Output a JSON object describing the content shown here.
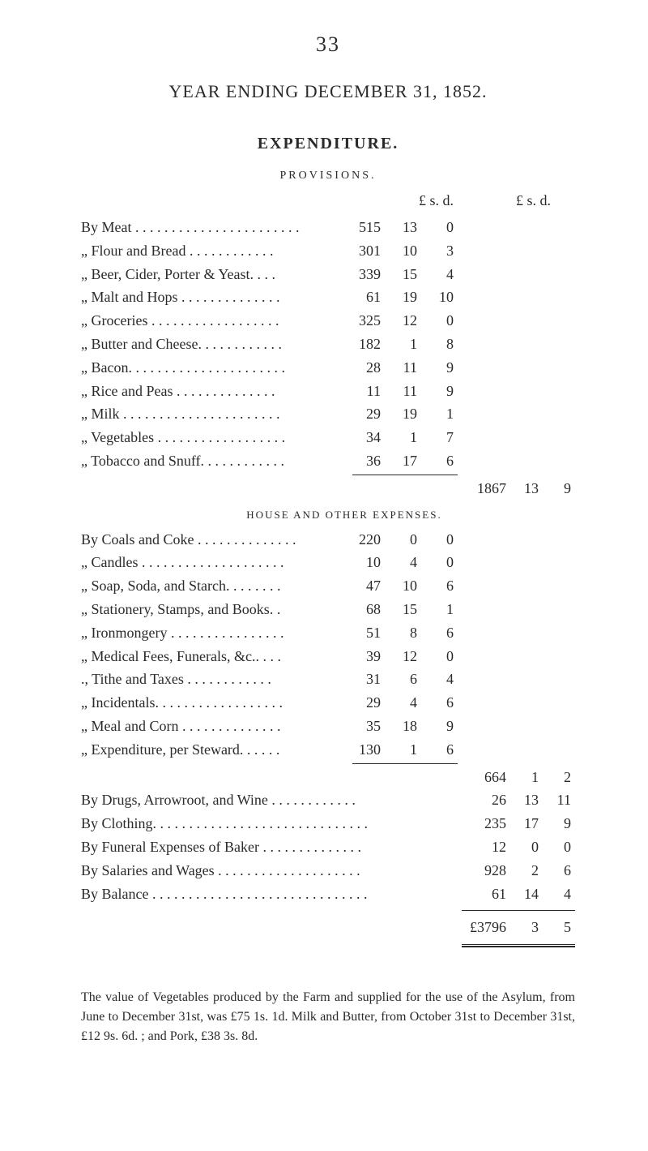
{
  "page_number": "33",
  "title": "YEAR ENDING DECEMBER 31, 1852.",
  "main_header": "EXPENDITURE.",
  "provisions": {
    "header": "PROVISIONS.",
    "col_headers": {
      "lsd1": "£  s.  d.",
      "lsd2": "£    s.  d."
    },
    "items": [
      {
        "label": "By Meat . . . . . . . . . . . . . . . . . . . . . . .",
        "pounds": "515",
        "shillings": "13",
        "pence": "0"
      },
      {
        "label": "„  Flour and Bread  . . . . . . . . . . . .",
        "pounds": "301",
        "shillings": "10",
        "pence": "3"
      },
      {
        "label": "„  Beer, Cider, Porter & Yeast. . . .",
        "pounds": "339",
        "shillings": "15",
        "pence": "4"
      },
      {
        "label": "„  Malt and Hops . . . . . . . . . . . . . .",
        "pounds": "61",
        "shillings": "19",
        "pence": "10"
      },
      {
        "label": "„  Groceries  . . . . . . . . . . . . . . . . . .",
        "pounds": "325",
        "shillings": "12",
        "pence": "0"
      },
      {
        "label": "„  Butter and Cheese. . . . . . . . . . . .",
        "pounds": "182",
        "shillings": "1",
        "pence": "8"
      },
      {
        "label": "„  Bacon. . . . . . . . . . . . . . . . . . . . . .",
        "pounds": "28",
        "shillings": "11",
        "pence": "9"
      },
      {
        "label": "„  Rice and Peas  . . . . . . . . . . . . . .",
        "pounds": "11",
        "shillings": "11",
        "pence": "9"
      },
      {
        "label": "„  Milk  . . . . . . . . . . . . . . . . . . . . . .",
        "pounds": "29",
        "shillings": "19",
        "pence": "1"
      },
      {
        "label": "„  Vegetables . . . . . . . . . . . . . . . . . .",
        "pounds": "34",
        "shillings": "1",
        "pence": "7"
      },
      {
        "label": "„  Tobacco and Snuff. . . . . . . . . . . .",
        "pounds": "36",
        "shillings": "17",
        "pence": "6"
      }
    ],
    "subtotal": {
      "pounds": "1867",
      "shillings": "13",
      "pence": "9"
    }
  },
  "house_expenses": {
    "header": "HOUSE AND OTHER EXPENSES.",
    "items": [
      {
        "label": "By Coals and Coke . . . . . . . . . . . . . .",
        "pounds": "220",
        "shillings": "0",
        "pence": "0"
      },
      {
        "label": "„  Candles . . . . . . . . . . . . . . . . . . . .",
        "pounds": "10",
        "shillings": "4",
        "pence": "0"
      },
      {
        "label": "„  Soap, Soda, and Starch. . . . . . . .",
        "pounds": "47",
        "shillings": "10",
        "pence": "6"
      },
      {
        "label": "„  Stationery, Stamps, and Books. .",
        "pounds": "68",
        "shillings": "15",
        "pence": "1"
      },
      {
        "label": "„  Ironmongery . . . . . . . . . . . . . . . .",
        "pounds": "51",
        "shillings": "8",
        "pence": "6"
      },
      {
        "label": "„  Medical Fees, Funerals, &c.. . . .",
        "pounds": "39",
        "shillings": "12",
        "pence": "0"
      },
      {
        "label": "., Tithe and Taxes  . . . . . . . . . . . .",
        "pounds": "31",
        "shillings": "6",
        "pence": "4"
      },
      {
        "label": "„  Incidentals. . . . . . . . . . . . . . . . . .",
        "pounds": "29",
        "shillings": "4",
        "pence": "6"
      },
      {
        "label": "„  Meal and Corn . . . . . . . . . . . . . .",
        "pounds": "35",
        "shillings": "18",
        "pence": "9"
      },
      {
        "label": "„  Expenditure, per Steward. . . . . .",
        "pounds": "130",
        "shillings": "1",
        "pence": "6"
      }
    ],
    "subtotal": {
      "pounds": "664",
      "shillings": "1",
      "pence": "2"
    }
  },
  "summary_lines": [
    {
      "label": "By Drugs, Arrowroot, and Wine . . . . . . . . . . . .",
      "pounds": "26",
      "shillings": "13",
      "pence": "11"
    },
    {
      "label": "By Clothing. . . . . . . . . . . . . . . . . . . . . . . . . . . . . .",
      "pounds": "235",
      "shillings": "17",
      "pence": "9"
    },
    {
      "label": "By Funeral Expenses of Baker . . . . . . . . . . . . . .",
      "pounds": "12",
      "shillings": "0",
      "pence": "0"
    },
    {
      "label": "By Salaries and Wages . . . . . . . . . . . . . . . . . . . .",
      "pounds": "928",
      "shillings": "2",
      "pence": "6"
    },
    {
      "label": "By Balance . . . . . . . . . . . . . . . . . . . . . . . . . . . . . .",
      "pounds": "61",
      "shillings": "14",
      "pence": "4"
    }
  ],
  "grand_total": {
    "pounds": "£3796",
    "shillings": "3",
    "pence": "5"
  },
  "footnote": "The value of Vegetables produced by the Farm and supplied for the use of the Asylum, from June to December 31st, was £75 1s. 1d. Milk and Butter, from October 31st to December 31st, £12 9s. 6d. ; and Pork, £38 3s. 8d.",
  "colors": {
    "background": "#ffffff",
    "text": "#2a2a2a"
  },
  "typography": {
    "body_font": "Georgia, Times New Roman, serif",
    "page_number_size": 26,
    "title_size": 22,
    "section_header_size": 20,
    "body_size": 18,
    "footnote_size": 16
  }
}
